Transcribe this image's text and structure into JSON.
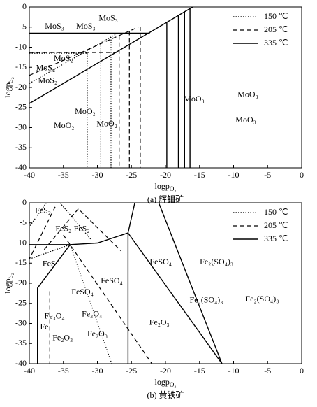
{
  "chart_data": [
    {
      "type": "line",
      "caption": "(a) 辉钼矿",
      "x_label": {
        "main": "logp",
        "sub": "O₂"
      },
      "y_label": {
        "main": "logp",
        "sub": "S₂"
      },
      "xlim": [
        -40,
        0
      ],
      "xticks": [
        -40,
        -35,
        -30,
        -25,
        -20,
        -15,
        -10,
        -5,
        0
      ],
      "ylim": [
        -40,
        0
      ],
      "yticks": [
        0,
        -5,
        -10,
        -15,
        -20,
        -25,
        -30,
        -35,
        -40
      ],
      "legend": "upper right",
      "series": [
        {
          "name": "150 ℃",
          "color": "#000000",
          "dash": "dotted",
          "x": [
            -40,
            -31.5,
            null,
            -40,
            -27,
            null,
            -31.5,
            -31.5,
            null,
            -29.5,
            -29.5,
            null,
            -28,
            -28
          ],
          "values": [
            -11.5,
            -11.5,
            null,
            -19,
            -6.5,
            null,
            -11.5,
            -40,
            null,
            -9,
            -40,
            null,
            -7.5,
            -40
          ]
        },
        {
          "name": "205 ℃",
          "color": "#000000",
          "dash": "dashed",
          "x": [
            -40,
            -27,
            null,
            -40,
            -24,
            null,
            -26.8,
            -26.8,
            null,
            -25.3,
            -25.3,
            null,
            -23.7,
            -23.7
          ],
          "values": [
            -11.3,
            -11.3,
            null,
            -17,
            -5,
            null,
            -7.1,
            -40,
            null,
            -6,
            -40,
            null,
            -5,
            -40
          ]
        },
        {
          "name": "335 ℃",
          "color": "#000000",
          "dash": "solid",
          "x": [
            -40,
            -22.3,
            null,
            -40,
            -16,
            null,
            -19.8,
            -19.8,
            null,
            -18.1,
            -18.1,
            null,
            -17.2,
            -17.2,
            null,
            -16.4,
            -16.4
          ],
          "values": [
            -6.5,
            -6.5,
            null,
            -24,
            0,
            null,
            -40,
            -3.8,
            null,
            -40,
            -2.1,
            null,
            -40,
            -1.2,
            null,
            -40,
            -0.4
          ]
        }
      ],
      "annotations": [
        {
          "text": "MoS₃",
          "x": -36.3,
          "y": -4.9
        },
        {
          "text": "MoS₃",
          "x": -31.7,
          "y": -4.9
        },
        {
          "text": "MoS₃",
          "x": -28.4,
          "y": -2.9
        },
        {
          "text": "MoS₂",
          "x": -35,
          "y": -12.9
        },
        {
          "text": "MoS₂",
          "x": -37.6,
          "y": -15.3
        },
        {
          "text": "MoS₂",
          "x": -37.3,
          "y": -18.4
        },
        {
          "text": "MoO₂",
          "x": -31.8,
          "y": -26.1
        },
        {
          "text": "MoO₂",
          "x": -34.9,
          "y": -29.6
        },
        {
          "text": "MoO₂",
          "x": -28.6,
          "y": -29.2
        },
        {
          "text": "MoO₃",
          "x": -15.8,
          "y": -23
        },
        {
          "text": "MoO₃",
          "x": -7.9,
          "y": -21.9
        },
        {
          "text": "MoO₃",
          "x": -8.2,
          "y": -28.2
        }
      ]
    },
    {
      "type": "line",
      "caption": "(b) 黄铁矿",
      "x_label": {
        "main": "logp",
        "sub": "O₂"
      },
      "y_label": {
        "main": "logp",
        "sub": "S₂"
      },
      "xlim": [
        -40,
        0
      ],
      "xticks": [
        -40,
        -35,
        -30,
        -25,
        -20,
        -15,
        -10,
        -5,
        0
      ],
      "ylim": [
        -40,
        0
      ],
      "yticks": [
        0,
        -5,
        -10,
        -15,
        -20,
        -25,
        -30,
        -35,
        -40
      ],
      "legend": "upper right",
      "series": [
        {
          "name": "150 ℃",
          "color": "#000000",
          "dash": "dotted",
          "x": [
            -37.5,
            -40,
            null,
            -35.5,
            -31,
            null,
            -40,
            -34,
            -27.9
          ],
          "values": [
            0,
            -6,
            null,
            0,
            -9,
            null,
            -14,
            -10.4,
            -40
          ]
        },
        {
          "name": "205 ℃",
          "color": "#000000",
          "dash": "dashed",
          "x": [
            -36.2,
            -40,
            null,
            -32.8,
            -38,
            null,
            -32.5,
            -26.5,
            null,
            -35,
            -22,
            null,
            -37,
            -37
          ],
          "values": [
            -1,
            -14,
            null,
            -1.5,
            -12,
            null,
            -2,
            -12,
            null,
            -8,
            -40,
            null,
            -22,
            -40
          ]
        },
        {
          "name": "335 ℃",
          "color": "#000000",
          "dash": "solid",
          "x": [
            -40,
            -34,
            -30,
            -25.5,
            null,
            -25.5,
            -25.5,
            null,
            -38.8,
            -38.8,
            -34,
            null,
            -25.5,
            -24.5,
            null,
            -21,
            -11.7,
            null,
            -25.5,
            -11.7
          ],
          "values": [
            -10.4,
            -10.4,
            -10,
            -7.5,
            null,
            -7.5,
            -40,
            null,
            -40,
            -21.2,
            -10.4,
            null,
            -7.5,
            0,
            null,
            0,
            -40,
            null,
            -7.5,
            -40
          ]
        }
      ],
      "annotations": [
        {
          "text": "FeS₂",
          "x": -38,
          "y": -2
        },
        {
          "text": "FeS₂",
          "x": -35,
          "y": -6.6
        },
        {
          "text": "FeS₂",
          "x": -32.3,
          "y": -6.6
        },
        {
          "text": "FeS",
          "x": -37.1,
          "y": -15.3
        },
        {
          "text": "FeSO₄",
          "x": -32.2,
          "y": -22.3
        },
        {
          "text": "FeSO₄",
          "x": -27.9,
          "y": -19.5
        },
        {
          "text": "FeSO₄",
          "x": -20.7,
          "y": -14.8
        },
        {
          "text": "Fe₂(SO₄)₃",
          "x": -12.5,
          "y": -14.8
        },
        {
          "text": "Fe₂(SO₄)₃",
          "x": -14,
          "y": -24.3
        },
        {
          "text": "Fe₂(SO₄)₃",
          "x": -5.8,
          "y": -24
        },
        {
          "text": "Fe₃O₄",
          "x": -36.3,
          "y": -28.3
        },
        {
          "text": "Fe",
          "x": -37.8,
          "y": -31
        },
        {
          "text": "Fe₂O₃",
          "x": -35.1,
          "y": -33.7
        },
        {
          "text": "Fe₃O₄",
          "x": -30.8,
          "y": -27.8
        },
        {
          "text": "Fe₂O₃",
          "x": -30,
          "y": -32.7
        },
        {
          "text": "Fe₂O₃",
          "x": -20.9,
          "y": -29.9
        }
      ]
    }
  ]
}
